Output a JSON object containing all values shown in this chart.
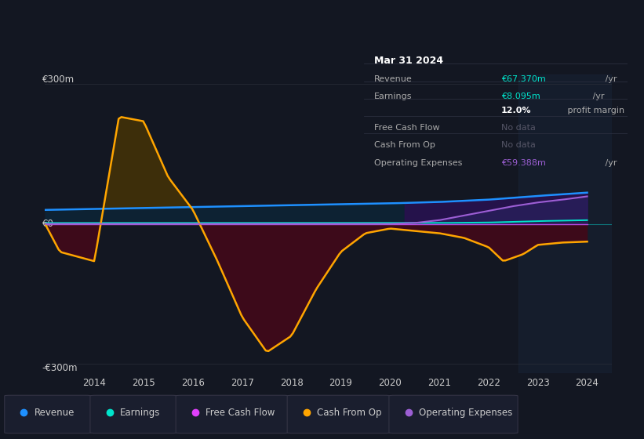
{
  "bg_color": "#131722",
  "plot_bg_color": "#131722",
  "grid_color": "#2a2e39",
  "text_color": "#cccccc",
  "title_color": "#ffffff",
  "y_label_top": "€300m",
  "y_label_zero": "€0",
  "y_label_bottom": "-€300m",
  "ylim": [
    -320,
    320
  ],
  "xlim": [
    2013.0,
    2024.5
  ],
  "xticks": [
    2014,
    2015,
    2016,
    2017,
    2018,
    2019,
    2020,
    2021,
    2022,
    2023,
    2024
  ],
  "series_colors": {
    "revenue": "#1e90ff",
    "earnings": "#00e5cc",
    "free_cash_flow": "#e040fb",
    "cash_from_op": "#ffa500",
    "operating_expenses": "#9c5fd4"
  },
  "legend_labels": [
    "Revenue",
    "Earnings",
    "Free Cash Flow",
    "Cash From Op",
    "Operating Expenses"
  ],
  "legend_colors": [
    "#1e90ff",
    "#00e5cc",
    "#e040fb",
    "#ffa500",
    "#9c5fd4"
  ],
  "info_box_title": "Mar 31 2024",
  "info_rows": [
    {
      "label": "Revenue",
      "value": "€67.370m",
      "suffix": " /yr",
      "value_color": "#00e5cc",
      "note": "",
      "note_color": ""
    },
    {
      "label": "Earnings",
      "value": "€8.095m",
      "suffix": " /yr",
      "value_color": "#00e5cc",
      "note": "",
      "note_color": ""
    },
    {
      "label": "",
      "value": "12.0%",
      "suffix": " profit margin",
      "value_color": "#ffffff",
      "note": "",
      "note_color": ""
    },
    {
      "label": "Free Cash Flow",
      "value": "No data",
      "suffix": "",
      "value_color": "#555566",
      "note": "",
      "note_color": ""
    },
    {
      "label": "Cash From Op",
      "value": "No data",
      "suffix": "",
      "value_color": "#555566",
      "note": "",
      "note_color": ""
    },
    {
      "label": "Operating Expenses",
      "value": "€59.388m",
      "suffix": " /yr",
      "value_color": "#9c5fd4",
      "note": "",
      "note_color": ""
    }
  ]
}
